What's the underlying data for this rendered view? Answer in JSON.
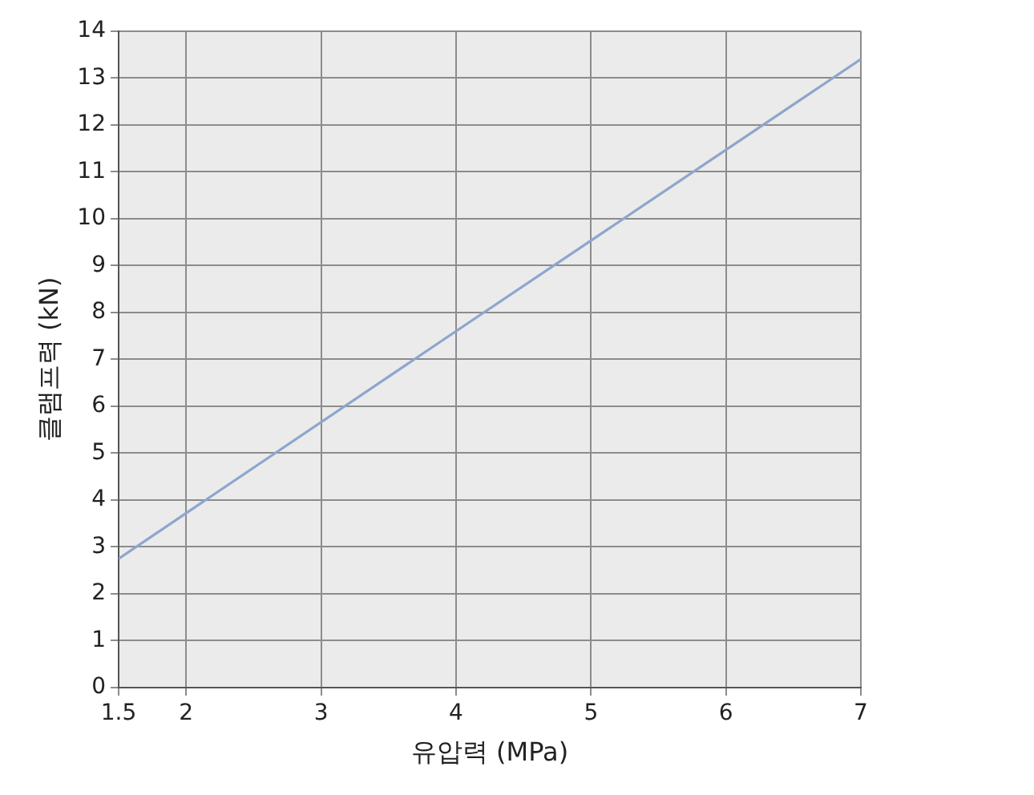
{
  "chart_data": {
    "type": "line",
    "xlabel": "유압력 (MPa)",
    "ylabel": "클램프력 (kN)",
    "x": [
      1.5,
      4,
      7
    ],
    "series": [
      {
        "color": "#8ea6cc",
        "values": [
          2.75,
          7.6,
          13.4
        ]
      }
    ],
    "xlim": [
      1.5,
      7
    ],
    "xticks": [
      1.5,
      2,
      3,
      4,
      5,
      6,
      7
    ],
    "ylim": [
      0,
      14
    ],
    "yticks": [
      0,
      1,
      2,
      3,
      4,
      5,
      6,
      7,
      8,
      9,
      10,
      11,
      12,
      13,
      14
    ],
    "grid": true,
    "legend": false,
    "marker": "none",
    "line_style": "solid"
  }
}
